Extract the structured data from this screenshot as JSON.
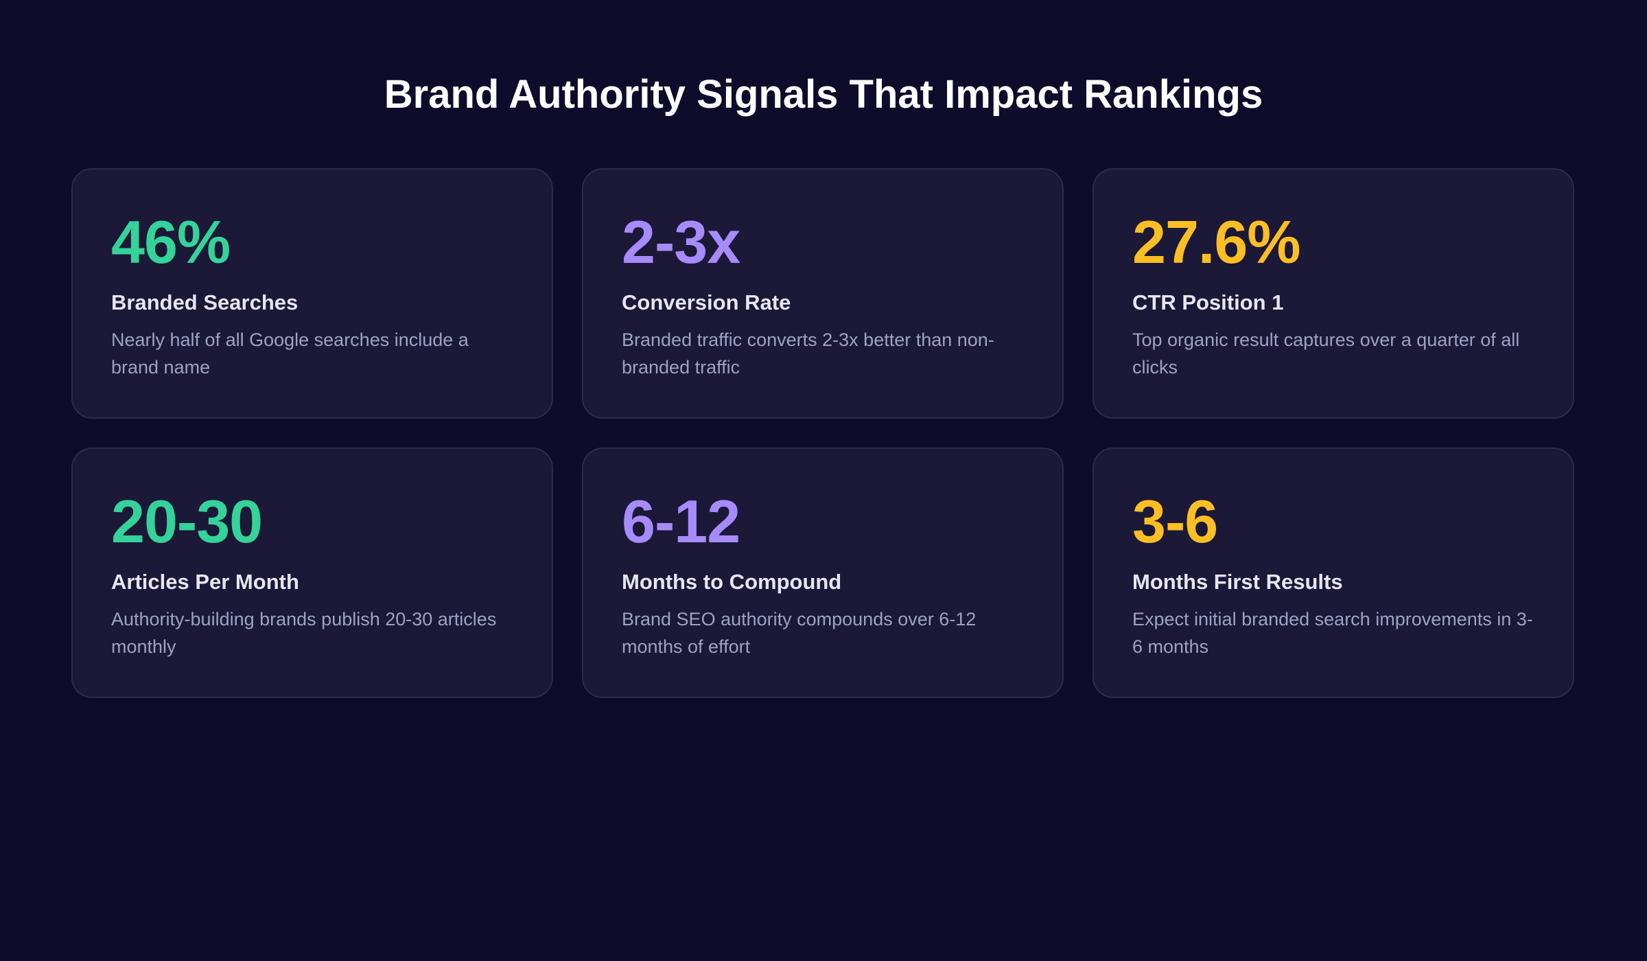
{
  "header": {
    "title": "Brand Authority Signals That Impact Rankings"
  },
  "cards": [
    {
      "value": "46%",
      "label": "Branded Searches",
      "description": "Nearly half of all Google searches include a brand name",
      "color": "#34d399"
    },
    {
      "value": "2-3x",
      "label": "Conversion Rate",
      "description": "Branded traffic converts 2-3x better than non-branded traffic",
      "color": "#a78bfa"
    },
    {
      "value": "27.6%",
      "label": "CTR Position 1",
      "description": "Top organic result captures over a quarter of all clicks",
      "color": "#fbbf24"
    },
    {
      "value": "20-30",
      "label": "Articles Per Month",
      "description": "Authority-building brands publish 20-30 articles monthly",
      "color": "#34d399"
    },
    {
      "value": "6-12",
      "label": "Months to Compound",
      "description": "Brand SEO authority compounds over 6-12 months of effort",
      "color": "#a78bfa"
    },
    {
      "value": "3-6",
      "label": "Months First Results",
      "description": "Expect initial branded search improvements in 3-6 months",
      "color": "#fbbf24"
    }
  ]
}
